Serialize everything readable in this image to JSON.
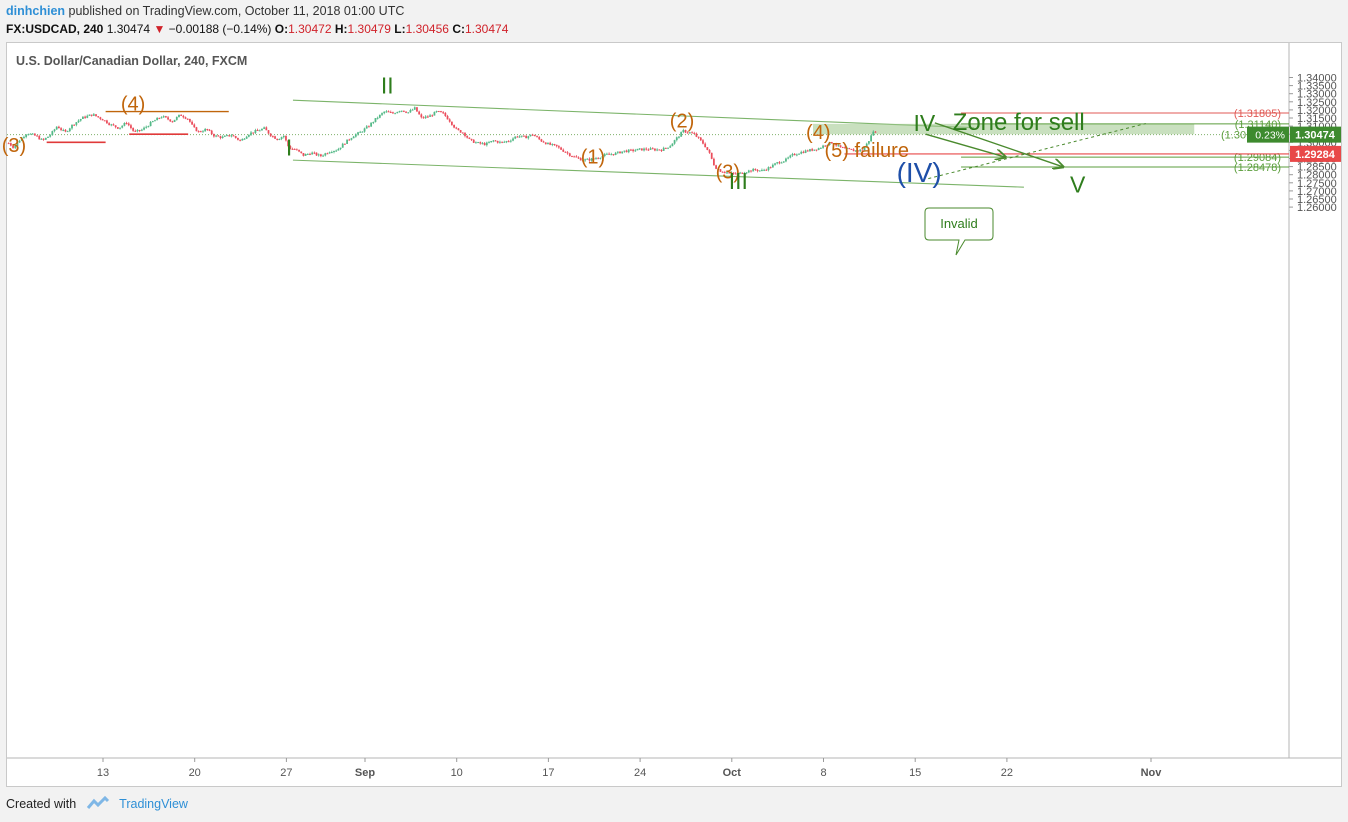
{
  "header": {
    "author": "dinhchien",
    "published_text": " published on TradingView.com, October 11, 2018 01:00 UTC",
    "symbol": "FX:USDCAD, 240",
    "last": "1.30474",
    "change_arrow": "▼",
    "change": "−0.00188 (−0.14%)",
    "o_label": "O:",
    "o_value": "1.30472",
    "h_label": "H:",
    "h_value": "1.30479",
    "l_label": "L:",
    "l_value": "1.30456",
    "c_label": "C:",
    "c_value": "1.30474"
  },
  "footer": {
    "created_with": "Created with",
    "brand": "TradingView"
  },
  "chart_data": {
    "type": "candlestick",
    "title": "U.S. Dollar/Canadian Dollar, 240, FXCM",
    "ylim": [
      1.2535,
      1.3435
    ],
    "y_ticks": [
      "1.34000",
      "1.33500",
      "1.33000",
      "1.32500",
      "1.32000",
      "1.31500",
      "1.31000",
      "1.30500",
      "1.30000",
      "1.29500",
      "1.29000",
      "1.28500",
      "1.28000",
      "1.27500",
      "1.27000",
      "1.26500",
      "1.26000"
    ],
    "x_labels": [
      {
        "day": 0,
        "label": "13"
      },
      {
        "day": 7,
        "label": "20"
      },
      {
        "day": 14,
        "label": "27"
      },
      {
        "day": 20,
        "label": "Sep"
      },
      {
        "day": 27,
        "label": "10"
      },
      {
        "day": 34,
        "label": "17"
      },
      {
        "day": 41,
        "label": "24"
      },
      {
        "day": 48,
        "label": "Oct"
      },
      {
        "day": 55,
        "label": "8"
      },
      {
        "day": 62,
        "label": "15"
      },
      {
        "day": 69,
        "label": "22"
      },
      {
        "day": 80,
        "label": "Nov"
      }
    ],
    "price_path": [
      [
        -7.2,
        1.2995
      ],
      [
        -6.8,
        1.2968
      ],
      [
        -6.3,
        1.302
      ],
      [
        -5.8,
        1.3058
      ],
      [
        -5.1,
        1.3038
      ],
      [
        -4.6,
        1.301
      ],
      [
        -4.0,
        1.3048
      ],
      [
        -3.5,
        1.31
      ],
      [
        -2.9,
        1.306
      ],
      [
        -2.3,
        1.311
      ],
      [
        -1.6,
        1.315
      ],
      [
        -0.8,
        1.3172
      ],
      [
        0.0,
        1.314
      ],
      [
        0.6,
        1.3108
      ],
      [
        1.2,
        1.3088
      ],
      [
        1.8,
        1.3122
      ],
      [
        2.4,
        1.3062
      ],
      [
        3.0,
        1.3078
      ],
      [
        3.8,
        1.3128
      ],
      [
        4.5,
        1.316
      ],
      [
        5.3,
        1.313
      ],
      [
        5.9,
        1.317
      ],
      [
        6.5,
        1.3145
      ],
      [
        6.9,
        1.309
      ],
      [
        7.3,
        1.3065
      ],
      [
        7.9,
        1.308
      ],
      [
        8.5,
        1.304
      ],
      [
        9.1,
        1.303
      ],
      [
        9.8,
        1.3045
      ],
      [
        10.5,
        1.3008
      ],
      [
        11.1,
        1.3052
      ],
      [
        11.7,
        1.307
      ],
      [
        12.3,
        1.3085
      ],
      [
        12.8,
        1.3045
      ],
      [
        13.3,
        1.302
      ],
      [
        13.8,
        1.304
      ],
      [
        14.2,
        1.2965
      ],
      [
        14.7,
        1.2955
      ],
      [
        15.3,
        1.292
      ],
      [
        15.9,
        1.2935
      ],
      [
        16.6,
        1.2915
      ],
      [
        17.3,
        1.2945
      ],
      [
        17.9,
        1.2955
      ],
      [
        18.5,
        1.3
      ],
      [
        19.1,
        1.304
      ],
      [
        19.6,
        1.306
      ],
      [
        20.2,
        1.3095
      ],
      [
        20.9,
        1.315
      ],
      [
        21.5,
        1.319
      ],
      [
        22.1,
        1.3178
      ],
      [
        22.7,
        1.32
      ],
      [
        23.3,
        1.3185
      ],
      [
        23.8,
        1.321
      ],
      [
        24.3,
        1.315
      ],
      [
        24.9,
        1.316
      ],
      [
        25.5,
        1.319
      ],
      [
        26.0,
        1.3175
      ],
      [
        26.5,
        1.313
      ],
      [
        27.0,
        1.3075
      ],
      [
        27.5,
        1.306
      ],
      [
        28.0,
        1.3012
      ],
      [
        28.6,
        1.2995
      ],
      [
        29.2,
        1.2988
      ],
      [
        29.8,
        1.301
      ],
      [
        30.4,
        1.2998
      ],
      [
        31.0,
        1.301
      ],
      [
        31.6,
        1.304
      ],
      [
        32.2,
        1.303
      ],
      [
        32.8,
        1.3048
      ],
      [
        33.4,
        1.3012
      ],
      [
        34.0,
        1.2988
      ],
      [
        34.6,
        1.2975
      ],
      [
        35.1,
        1.295
      ],
      [
        35.6,
        1.2925
      ],
      [
        36.1,
        1.2905
      ],
      [
        36.7,
        1.289
      ],
      [
        37.3,
        1.2895
      ],
      [
        37.9,
        1.291
      ],
      [
        38.5,
        1.2925
      ],
      [
        39.1,
        1.293
      ],
      [
        39.7,
        1.2945
      ],
      [
        40.3,
        1.2948
      ],
      [
        40.9,
        1.2955
      ],
      [
        41.5,
        1.2958
      ],
      [
        42.1,
        1.2955
      ],
      [
        42.7,
        1.2955
      ],
      [
        43.3,
        1.298
      ],
      [
        43.9,
        1.3035
      ],
      [
        44.3,
        1.307
      ],
      [
        44.7,
        1.3062
      ],
      [
        45.1,
        1.3052
      ],
      [
        45.5,
        1.302
      ],
      [
        45.9,
        1.2985
      ],
      [
        46.3,
        1.293
      ],
      [
        46.7,
        1.285
      ],
      [
        47.1,
        1.2825
      ],
      [
        47.6,
        1.2815
      ],
      [
        48.1,
        1.2805
      ],
      [
        48.6,
        1.2808
      ],
      [
        49.1,
        1.282
      ],
      [
        49.7,
        1.283
      ],
      [
        50.3,
        1.2825
      ],
      [
        50.9,
        1.2845
      ],
      [
        51.5,
        1.2875
      ],
      [
        52.1,
        1.289
      ],
      [
        52.6,
        1.292
      ],
      [
        53.1,
        1.2935
      ],
      [
        53.6,
        1.2945
      ],
      [
        54.2,
        1.2955
      ],
      [
        54.7,
        1.2965
      ],
      [
        55.2,
        1.2988
      ],
      [
        55.7,
        1.3
      ],
      [
        56.2,
        1.297
      ],
      [
        56.7,
        1.2958
      ],
      [
        57.2,
        1.295
      ],
      [
        57.6,
        1.2948
      ],
      [
        58.0,
        1.2955
      ],
      [
        58.4,
        1.3
      ],
      [
        58.8,
        1.3068
      ],
      [
        59.1,
        1.305
      ]
    ],
    "annotations": [
      {
        "text": "(3)",
        "day": -6.8,
        "price": 1.294,
        "color": "#c0650b",
        "size": 20
      },
      {
        "text": "(4)",
        "day": 2.3,
        "price": 1.3196,
        "color": "#c0650b",
        "size": 20
      },
      {
        "text": "II",
        "day": 21.7,
        "price": 1.33,
        "color": "#2e7d1c",
        "size": 23
      },
      {
        "text": "I",
        "day": 14.2,
        "price": 1.292,
        "color": "#2e7d1c",
        "size": 23
      },
      {
        "text": "(1)",
        "day": 37.4,
        "price": 1.287,
        "color": "#c0650b",
        "size": 20
      },
      {
        "text": "(2)",
        "day": 44.2,
        "price": 1.3091,
        "color": "#c0650b",
        "size": 20
      },
      {
        "text": "(3)",
        "day": 47.7,
        "price": 1.2778,
        "color": "#c0650b",
        "size": 20
      },
      {
        "text": "III",
        "day": 48.5,
        "price": 1.2712,
        "color": "#2e7d1c",
        "size": 23
      },
      {
        "text": "(4)",
        "day": 54.6,
        "price": 1.302,
        "color": "#c0650b",
        "size": 20
      },
      {
        "text": "(5) failure",
        "day": 58.3,
        "price": 1.291,
        "color": "#c0650b",
        "size": 20
      },
      {
        "text": "IV",
        "day": 62.7,
        "price": 1.307,
        "color": "#2e7d1c",
        "size": 23
      },
      {
        "text": "Zone for sell",
        "day": 69.9,
        "price": 1.3075,
        "color": "#2e7d1c",
        "size": 24
      },
      {
        "text": "(IV)",
        "day": 62.3,
        "price": 1.2755,
        "color": "#1e4fa8",
        "size": 28
      },
      {
        "text": "V",
        "day": 74.4,
        "price": 1.269,
        "color": "#2e7d1c",
        "size": 23
      }
    ],
    "levels": [
      {
        "label": "1.31805",
        "price": 1.31805,
        "color": "#e05a55"
      },
      {
        "label": "1.31140",
        "price": 1.3114,
        "color": "#5b9e3c"
      },
      {
        "label": "1.29084",
        "price": 1.29084,
        "color": "#5b9e3c"
      },
      {
        "label": "1.28478",
        "price": 1.28478,
        "color": "#5b9e3c"
      }
    ],
    "current_price_label": "1.30474",
    "current_price_partial": "1.30",
    "current_percent": "0.23%",
    "failure_price_label": "1.29284",
    "callout": "Invalid"
  }
}
